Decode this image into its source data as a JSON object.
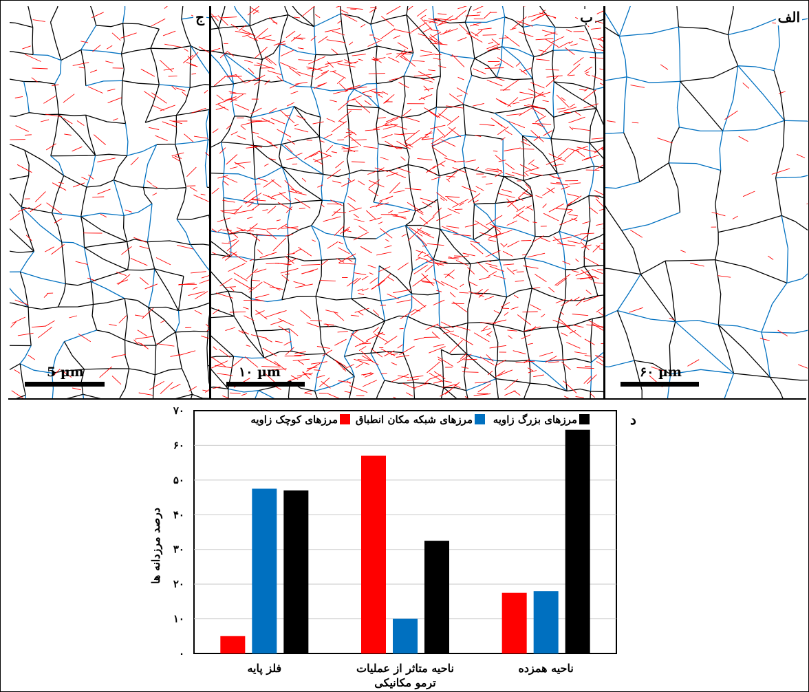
{
  "panels": [
    {
      "label": "ج",
      "scale_text": "5 µm"
    },
    {
      "label": "ب",
      "scale_text": "۱۰ µm"
    },
    {
      "label": "الف",
      "scale_text": "۶۰ µm"
    }
  ],
  "panel_d_label": "د",
  "colors": {
    "low_angle": "#ff0000",
    "csl": "#0070c0",
    "high_angle": "#000000"
  },
  "chart_data": {
    "type": "bar",
    "title": "",
    "xlabel": "",
    "ylabel": "درصد مرزدانه ها",
    "ylim": [
      0,
      70
    ],
    "yticks": [
      "۰",
      "۱۰",
      "۲۰",
      "۳۰",
      "۴۰",
      "۵۰",
      "۶۰",
      "۷۰"
    ],
    "grid": true,
    "legend_position": "top",
    "categories": [
      {
        "lines": [
          "فلز پایه"
        ]
      },
      {
        "lines": [
          "ناحیه متاثر از عملیات",
          "ترمو مکانیکی"
        ]
      },
      {
        "lines": [
          "ناحیه همزده"
        ]
      }
    ],
    "series": [
      {
        "name": "مرزهای کوچک زاویه",
        "color": "#ff0000",
        "values": [
          5,
          57,
          17.5
        ]
      },
      {
        "name": "مرزهای شبکه مکان انطباق",
        "color": "#0070c0",
        "values": [
          47.5,
          10,
          18
        ]
      },
      {
        "name": "مرزهای بزرگ زاویه",
        "color": "#000000",
        "values": [
          47,
          32.5,
          64.5
        ]
      }
    ]
  }
}
